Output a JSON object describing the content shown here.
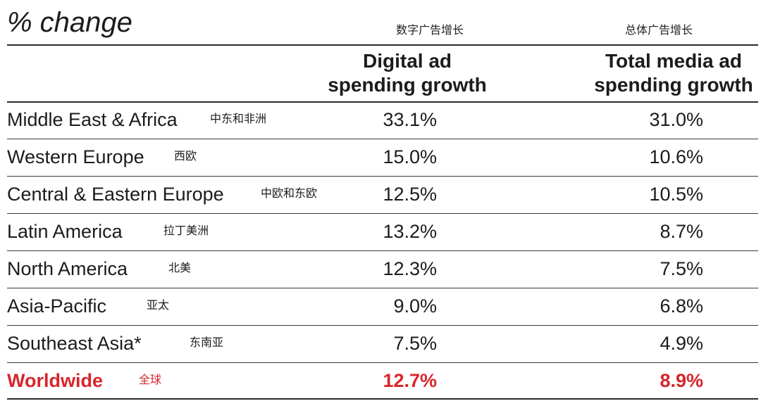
{
  "header": {
    "title": "% change",
    "col1_cn": "数字广告增长",
    "col2_cn": "总体广告增长",
    "col1_line1": "Digital ad",
    "col1_line2": "spending growth",
    "col2_line1": "Total media ad",
    "col2_line2": "spending growth"
  },
  "rows": [
    {
      "region": "Middle East & Africa",
      "cn": "中东和非洲",
      "digital": "33.1%",
      "total": "31.0%"
    },
    {
      "region": "Western Europe",
      "cn": "西欧",
      "digital": "15.0%",
      "total": "10.6%"
    },
    {
      "region": "Central & Eastern Europe",
      "cn": "中欧和东欧",
      "digital": "12.5%",
      "total": "10.5%"
    },
    {
      "region": "Latin America",
      "cn": "拉丁美洲",
      "digital": "13.2%",
      "total": "8.7%"
    },
    {
      "region": "North America",
      "cn": "北美",
      "digital": "12.3%",
      "total": "7.5%"
    },
    {
      "region": "Asia-Pacific",
      "cn": "亚太",
      "digital": "9.0%",
      "total": "6.8%"
    },
    {
      "region": "Southeast Asia*",
      "cn": "东南亚",
      "digital": "7.5%",
      "total": "4.9%"
    },
    {
      "region": "Worldwide",
      "cn": "全球",
      "digital": "12.7%",
      "total": "8.9%"
    }
  ],
  "colors": {
    "text": "#1c1c1c",
    "highlight": "#d7262b",
    "rule": "#2a2a2a"
  },
  "chart_data": {
    "type": "table",
    "title": "% change",
    "columns": [
      "Digital ad spending growth",
      "Total media ad spending growth"
    ],
    "categories": [
      "Middle East & Africa",
      "Western Europe",
      "Central & Eastern Europe",
      "Latin America",
      "North America",
      "Asia-Pacific",
      "Southeast Asia*",
      "Worldwide"
    ],
    "series": [
      {
        "name": "Digital ad spending growth",
        "values": [
          33.1,
          15.0,
          12.5,
          13.2,
          12.3,
          9.0,
          7.5,
          12.7
        ]
      },
      {
        "name": "Total media ad spending growth",
        "values": [
          31.0,
          10.6,
          10.5,
          8.7,
          7.5,
          6.8,
          4.9,
          8.9
        ]
      }
    ]
  }
}
